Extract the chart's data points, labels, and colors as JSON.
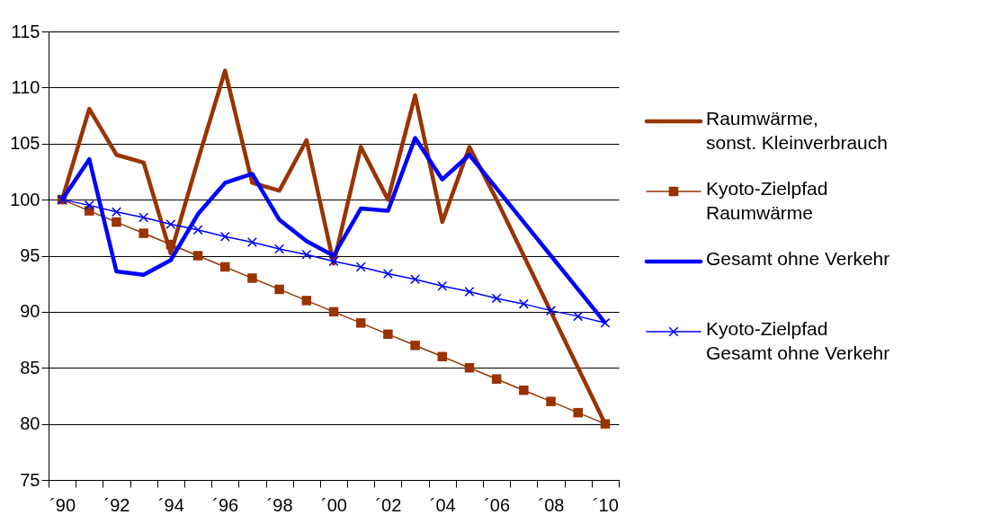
{
  "chart_data": {
    "type": "line",
    "categories": [
      "´90",
      null,
      "´92",
      null,
      "´94",
      null,
      "´96",
      null,
      "´98",
      null,
      "´00",
      null,
      "´02",
      null,
      "´04",
      null,
      "´06",
      null,
      "´08",
      null,
      "´10"
    ],
    "series": [
      {
        "name": "Raumwärme,\nsonst. Kleinverbrauch",
        "color": "#993300",
        "marker": "none",
        "values": [
          100,
          108.1,
          104,
          103.3,
          95.2,
          103.5,
          111.5,
          101.5,
          100.8,
          105.3,
          94.3,
          104.7,
          100,
          109.3,
          98,
          104.7,
          100,
          95,
          90,
          85,
          80
        ]
      },
      {
        "name": "Kyoto-Zielpfad\nRaumwärme",
        "color": "#993300",
        "marker": "square",
        "values": [
          100,
          99,
          98,
          97,
          96,
          95,
          94,
          93,
          92,
          91,
          90,
          89,
          88,
          87,
          86,
          85,
          84,
          83,
          82,
          81,
          80
        ]
      },
      {
        "name": "Gesamt ohne Verkehr",
        "color": "#0000ff",
        "marker": "none",
        "values": [
          100,
          103.6,
          93.6,
          93.3,
          94.6,
          98.7,
          101.5,
          102.3,
          98.2,
          96.3,
          95,
          99.2,
          99,
          105.5,
          101.8,
          104,
          101,
          98,
          95,
          92,
          89
        ]
      },
      {
        "name": "Kyoto-Zielpfad\nGesamt ohne Verkehr",
        "color": "#0000ff",
        "marker": "cross",
        "values": [
          100,
          99.5,
          98.9,
          98.4,
          97.8,
          97.3,
          96.7,
          96.2,
          95.6,
          95.1,
          94.5,
          94,
          93.4,
          92.9,
          92.3,
          91.8,
          91.2,
          90.7,
          90.1,
          89.6,
          89
        ]
      }
    ],
    "ylim": [
      75,
      115
    ],
    "yticks": [
      75,
      80,
      85,
      90,
      95,
      100,
      105,
      110,
      115
    ],
    "grid": "y",
    "legend": "right"
  }
}
